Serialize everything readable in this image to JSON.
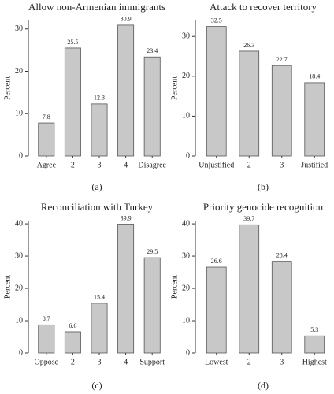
{
  "chart_data": [
    {
      "type": "bar",
      "title": "Allow non-Armenian immigrants",
      "y_label": "Percent",
      "caption": "(a)",
      "categories": [
        "Agree",
        "2",
        "3",
        "4",
        "Disagree"
      ],
      "values": [
        7.8,
        25.5,
        12.3,
        30.9,
        23.4
      ],
      "color": "#c8c8c8",
      "ylim": [
        0,
        32
      ],
      "yticks": [
        0,
        10,
        20,
        30
      ]
    },
    {
      "type": "bar",
      "title": "Attack to recover territory",
      "y_label": "Percent",
      "caption": "(b)",
      "categories": [
        "Unjustified",
        "2",
        "3",
        "Justified"
      ],
      "values": [
        32.5,
        26.3,
        22.7,
        18.4
      ],
      "color": "#c8c8c8",
      "ylim": [
        0,
        34
      ],
      "yticks": [
        0,
        10,
        20,
        30
      ]
    },
    {
      "type": "bar",
      "title": "Reconciliation with Turkey",
      "y_label": "Percent",
      "caption": "(c)",
      "categories": [
        "Oppose",
        "2",
        "3",
        "4",
        "Support"
      ],
      "values": [
        8.7,
        6.6,
        15.4,
        39.9,
        29.5
      ],
      "color": "#c8c8c8",
      "ylim": [
        0,
        41
      ],
      "yticks": [
        0,
        10,
        20,
        30,
        40
      ]
    },
    {
      "type": "bar",
      "title": "Priority genocide recognition",
      "y_label": "Percent",
      "caption": "(d)",
      "categories": [
        "Lowest",
        "2",
        "3",
        "Highest"
      ],
      "values": [
        26.6,
        39.7,
        28.4,
        5.3
      ],
      "color": "#c8c8c8",
      "ylim": [
        0,
        41
      ],
      "yticks": [
        0,
        10,
        20,
        30,
        40
      ]
    }
  ]
}
